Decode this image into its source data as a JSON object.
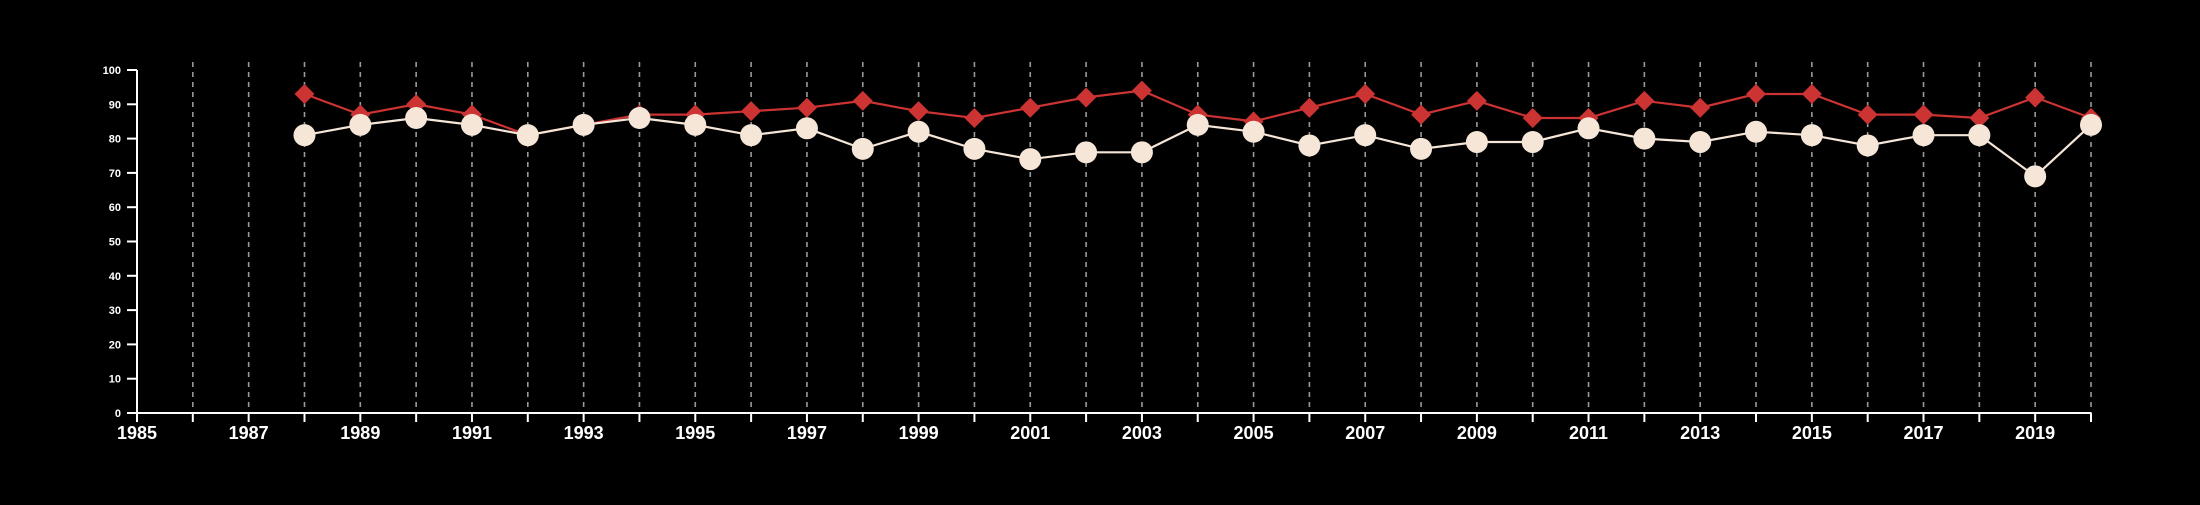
{
  "chart_data": {
    "type": "line",
    "title": "",
    "xlabel": "",
    "ylabel": "",
    "xlim": [
      1985,
      2020
    ],
    "ylim": [
      0,
      100
    ],
    "x_ticks_labeled": [
      "1985",
      "1987",
      "1989",
      "1991",
      "1993",
      "1995",
      "1997",
      "1999",
      "2001",
      "2003",
      "2005",
      "2007",
      "2009",
      "2011",
      "2013",
      "2015",
      "2017",
      "2019"
    ],
    "y_ticks": [
      "0",
      "10",
      "20",
      "30",
      "40",
      "50",
      "60",
      "70",
      "80",
      "90",
      "100"
    ],
    "grid": "vertical dashed at each year",
    "x": [
      1988,
      1989,
      1990,
      1991,
      1992,
      1993,
      1994,
      1995,
      1996,
      1997,
      1998,
      1999,
      2000,
      2001,
      2002,
      2003,
      2004,
      2005,
      2006,
      2007,
      2008,
      2009,
      2010,
      2011,
      2012,
      2013,
      2014,
      2015,
      2016,
      2017,
      2018,
      2019,
      2020
    ],
    "series": [
      {
        "color": "#cc3333",
        "marker": "diamond",
        "values": [
          93,
          87,
          90,
          87,
          81,
          84,
          87,
          87,
          88,
          89,
          91,
          88,
          86,
          89,
          92,
          94,
          87,
          85,
          89,
          93,
          87,
          91,
          86,
          86,
          91,
          89,
          93,
          93,
          87,
          87,
          86,
          92,
          86
        ]
      },
      {
        "color": "#f5e6d8",
        "marker": "circle",
        "values": [
          81,
          84,
          86,
          84,
          81,
          84,
          86,
          84,
          81,
          83,
          77,
          82,
          77,
          74,
          76,
          76,
          84,
          82,
          78,
          81,
          77,
          79,
          79,
          83,
          80,
          79,
          82,
          81,
          78,
          81,
          81,
          69,
          84
        ]
      }
    ]
  },
  "colors": {
    "background": "#000000",
    "axis": "#ffffff",
    "grid": "#9a9a9a",
    "series_red": "#cc3333",
    "series_cream": "#f5e6d8"
  }
}
